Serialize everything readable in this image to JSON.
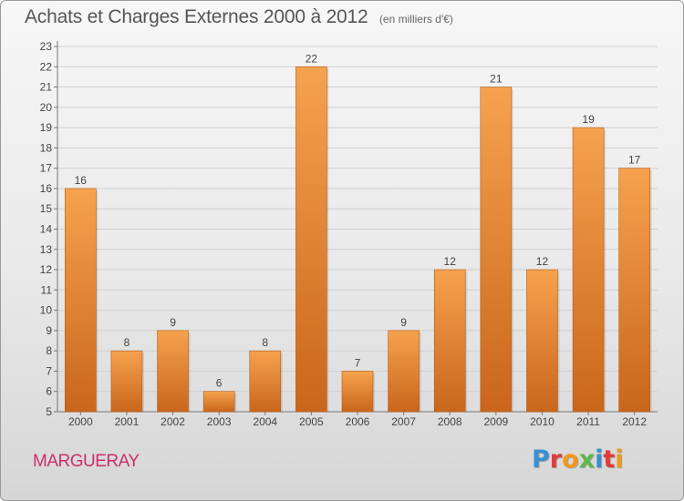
{
  "header": {
    "title": "Achats et Charges Externes 2000 à 2012",
    "subtitle": "(en milliers d'€)"
  },
  "footer": {
    "place": "MARGUERAY",
    "brand": "Proxiti",
    "brand_colors": [
      "#3a8fd0",
      "#e23a3a",
      "#f19a1a",
      "#5cb84a",
      "#3a8fd0",
      "#e23a3a",
      "#f19a1a"
    ]
  },
  "chart_data": {
    "type": "bar",
    "title": "Achats et Charges Externes 2000 à 2012",
    "subtitle": "(en milliers d'€)",
    "categories": [
      "2000",
      "2001",
      "2002",
      "2003",
      "2004",
      "2005",
      "2006",
      "2007",
      "2008",
      "2009",
      "2010",
      "2011",
      "2012"
    ],
    "values": [
      16,
      8,
      9,
      6,
      8,
      22,
      7,
      9,
      12,
      21,
      12,
      19,
      17
    ],
    "ylim": [
      5,
      23
    ],
    "yticks": [
      5,
      6,
      7,
      8,
      9,
      10,
      11,
      12,
      13,
      14,
      15,
      16,
      17,
      18,
      19,
      20,
      21,
      22,
      23
    ],
    "grid": true,
    "legend": "none",
    "bar_color": "#f0943c",
    "bar_color_dark": "#c8641a"
  }
}
